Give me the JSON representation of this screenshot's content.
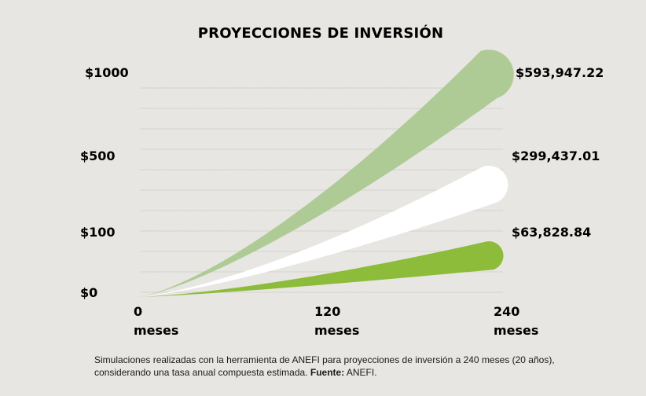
{
  "chart_data": {
    "type": "area",
    "title": "PROYECCIONES DE INVERSIÓN",
    "xlabel": "",
    "ylabel": "",
    "x_ticks": [
      {
        "value": "0",
        "unit": "meses"
      },
      {
        "value": "120",
        "unit": "meses"
      },
      {
        "value": "240",
        "unit": "meses"
      }
    ],
    "y_ticks": [
      "$1000",
      "$500",
      "$100",
      "$0"
    ],
    "series": [
      {
        "monthly": 1000,
        "final_value": "$593,947.22",
        "color": "#a9c98f"
      },
      {
        "monthly": 500,
        "final_value": "$299,437.01",
        "color": "#ffffff"
      },
      {
        "monthly": 100,
        "final_value": "$63,828.84",
        "color": "#8dbb3a"
      }
    ],
    "grid": true,
    "legend": "none"
  },
  "footnote": {
    "text": "Simulaciones realizadas con la herramienta de ANEFI para proyecciones de inversión a 240 meses (20 años), considerando una tasa anual compuesta estimada.",
    "source_label": "Fuente:",
    "source_value": "ANEFI."
  }
}
